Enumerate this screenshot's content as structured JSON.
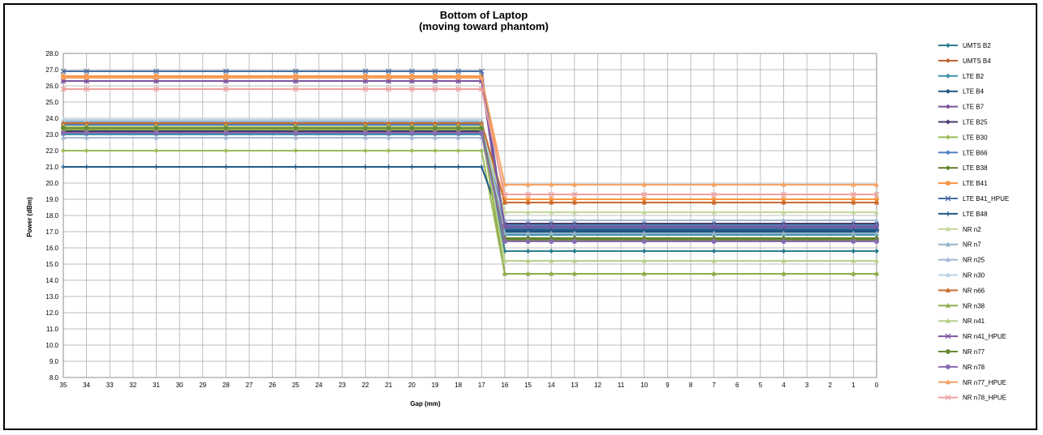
{
  "chart_data": {
    "type": "line",
    "title": "Bottom of Laptop",
    "subtitle": "(moving toward phantom)",
    "xlabel": "Gap (mm)",
    "ylabel": "Power (dBm)",
    "ylim": [
      8.0,
      28.0
    ],
    "ystep": 1.0,
    "x_categories": [
      "35",
      "34",
      "33",
      "32",
      "31",
      "30",
      "29",
      "28",
      "27",
      "26",
      "25",
      "24",
      "23",
      "22",
      "21",
      "20",
      "19",
      "18",
      "17",
      "16",
      "15",
      "14",
      "13",
      "12",
      "11",
      "10",
      "9",
      "8",
      "7",
      "6",
      "5",
      "4",
      "3",
      "2",
      "1",
      "0"
    ],
    "marker_x": [
      "35",
      "34",
      "31",
      "28",
      "25",
      "22",
      "21",
      "20",
      "19",
      "18",
      "17",
      "16",
      "15",
      "14",
      "13",
      "10",
      "7",
      "4",
      "1",
      "0"
    ],
    "grid": true,
    "legend_position": "right",
    "series": [
      {
        "name": "UMTS B2",
        "color": "#2e7f8e",
        "marker": "diamond",
        "high": 23.0,
        "low": 15.8
      },
      {
        "name": "UMTS B4",
        "color": "#c0622a",
        "marker": "diamond",
        "high": 23.7,
        "low": 18.8
      },
      {
        "name": "LTE B2",
        "color": "#3f93a8",
        "marker": "diamond",
        "high": 23.0,
        "low": 16.8
      },
      {
        "name": "LTE B4",
        "color": "#24557e",
        "marker": "diamond",
        "high": 23.2,
        "low": 17.0
      },
      {
        "name": "LTE B7",
        "color": "#7c4f99",
        "marker": "diamond",
        "high": 26.3,
        "low": 16.6
      },
      {
        "name": "LTE B25",
        "color": "#4a3a6b",
        "marker": "diamond",
        "high": 23.2,
        "low": 17.5
      },
      {
        "name": "LTE B30",
        "color": "#9bbb59",
        "marker": "diamond",
        "high": 22.0,
        "low": 14.4
      },
      {
        "name": "LTE B66",
        "color": "#4f81bd",
        "marker": "diamond",
        "high": 23.6,
        "low": 17.4
      },
      {
        "name": "LTE B38",
        "color": "#5f7f2a",
        "marker": "diamond",
        "high": 23.5,
        "low": 16.6
      },
      {
        "name": "LTE B41",
        "color": "#f79646",
        "marker": "circle",
        "high": 26.6,
        "low": 19.0
      },
      {
        "name": "LTE B41_HPUE",
        "color": "#4a6fa5",
        "marker": "x",
        "high": 26.9,
        "low": 17.2
      },
      {
        "name": "LTE B48",
        "color": "#1f5a8a",
        "marker": "plus",
        "high": 21.0,
        "low": 17.1
      },
      {
        "name": "NR n2",
        "color": "#c4d79b",
        "marker": "triangle",
        "high": 23.4,
        "low": 18.2
      },
      {
        "name": "NR n7",
        "color": "#93b3c8",
        "marker": "triangle",
        "high": 23.8,
        "low": 16.9
      },
      {
        "name": "NR n25",
        "color": "#a5b9d5",
        "marker": "triangle",
        "high": 22.8,
        "low": 17.7
      },
      {
        "name": "NR n30",
        "color": "#b8d4e8",
        "marker": "triangle",
        "high": 23.9,
        "low": 16.4
      },
      {
        "name": "NR n66",
        "color": "#c86c2e",
        "marker": "triangle",
        "high": 23.7,
        "low": 18.8
      },
      {
        "name": "NR n38",
        "color": "#8fad4c",
        "marker": "triangle",
        "high": 23.3,
        "low": 14.4
      },
      {
        "name": "NR n41",
        "color": "#b7d08a",
        "marker": "triangle",
        "high": 23.5,
        "low": 15.2
      },
      {
        "name": "NR n41_HPUE",
        "color": "#7d55a0",
        "marker": "x",
        "high": 26.3,
        "low": 17.3
      },
      {
        "name": "NR n77",
        "color": "#6a8a3a",
        "marker": "circle",
        "high": 23.4,
        "low": 16.5
      },
      {
        "name": "NR n78",
        "color": "#8a6bb0",
        "marker": "circle",
        "high": 23.1,
        "low": 16.4
      },
      {
        "name": "NR n77_HPUE",
        "color": "#f7a262",
        "marker": "triangle",
        "high": 26.5,
        "low": 19.9
      },
      {
        "name": "NR n78_HPUE",
        "color": "#f0a0a0",
        "marker": "x",
        "high": 25.8,
        "low": 19.3
      }
    ]
  }
}
